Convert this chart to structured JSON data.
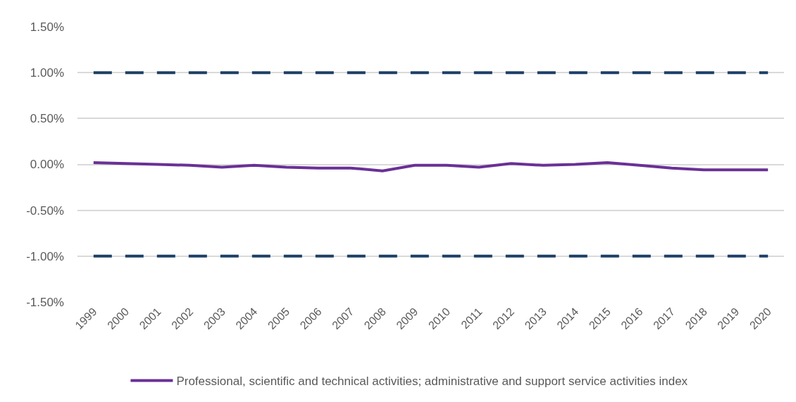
{
  "chart_data": {
    "type": "line",
    "categories": [
      "1999",
      "2000",
      "2001",
      "2002",
      "2003",
      "2004",
      "2005",
      "2006",
      "2007",
      "2008",
      "2009",
      "2010",
      "2011",
      "2012",
      "2013",
      "2014",
      "2015",
      "2016",
      "2017",
      "2018",
      "2019",
      "2020"
    ],
    "series": [
      {
        "name": "Professional, scientific and technical activities; administrative and support service activities index",
        "color": "#6a3096",
        "values": [
          0.02,
          0.01,
          0.0,
          -0.01,
          -0.03,
          -0.01,
          -0.03,
          -0.04,
          -0.04,
          -0.07,
          -0.01,
          -0.01,
          -0.03,
          0.01,
          -0.01,
          0.0,
          0.02,
          -0.01,
          -0.04,
          -0.06,
          -0.06,
          -0.06
        ]
      },
      {
        "color": "#1d3f66",
        "line_style": "dashed",
        "values": [
          1.0,
          1.0,
          1.0,
          1.0,
          1.0,
          1.0,
          1.0,
          1.0,
          1.0,
          1.0,
          1.0,
          1.0,
          1.0,
          1.0,
          1.0,
          1.0,
          1.0,
          1.0,
          1.0,
          1.0,
          1.0,
          1.0
        ]
      },
      {
        "color": "#1d3f66",
        "line_style": "dashed",
        "values": [
          -1.0,
          -1.0,
          -1.0,
          -1.0,
          -1.0,
          -1.0,
          -1.0,
          -1.0,
          -1.0,
          -1.0,
          -1.0,
          -1.0,
          -1.0,
          -1.0,
          -1.0,
          -1.0,
          -1.0,
          -1.0,
          -1.0,
          -1.0,
          -1.0,
          -1.0
        ]
      }
    ],
    "ylim": [
      -1.5,
      1.5
    ],
    "yticks": [
      {
        "value": -1.5,
        "label": "-1.50%"
      },
      {
        "value": -1.0,
        "label": "-1.00%"
      },
      {
        "value": -0.5,
        "label": "-0.50%"
      },
      {
        "value": 0,
        "label": "0.00%"
      },
      {
        "value": 0.5,
        "label": "0.50%"
      },
      {
        "value": 1.0,
        "label": "1.00%"
      },
      {
        "value": 1.5,
        "label": "1.50%"
      }
    ],
    "grid": "y",
    "legend": "bottom"
  }
}
